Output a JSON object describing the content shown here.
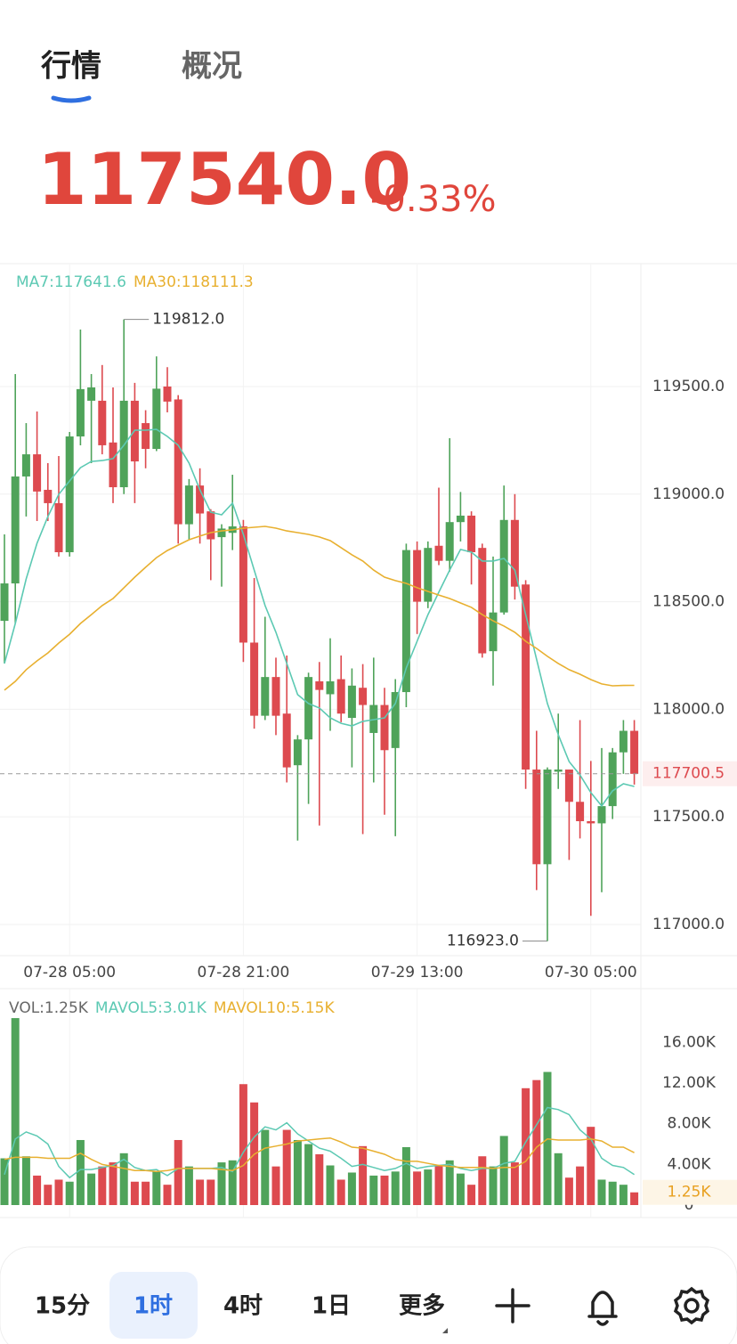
{
  "tabs": [
    "行情",
    "概况"
  ],
  "price": "117540.0",
  "change": "-0.33%",
  "chart_data": [
    {
      "type": "candlestick",
      "categories": [
        null,
        null,
        null,
        null,
        null,
        null,
        "07-28 05:00",
        null,
        null,
        null,
        null,
        null,
        null,
        null,
        null,
        null,
        null,
        null,
        null,
        null,
        null,
        null,
        "07-28 21:00",
        null,
        null,
        null,
        null,
        null,
        null,
        null,
        null,
        null,
        null,
        null,
        null,
        null,
        null,
        null,
        "07-29 13:00",
        null,
        null,
        null,
        null,
        null,
        null,
        null,
        null,
        null,
        null,
        null,
        null,
        null,
        null,
        null,
        "07-30 05:00",
        null,
        null,
        null,
        null
      ],
      "open": [
        118411,
        118585,
        119082,
        119185,
        119020,
        118958,
        118730,
        119268,
        119434,
        119434,
        119240,
        119032,
        119434,
        119330,
        119210,
        119500,
        119440,
        118860,
        119040,
        118920,
        118800,
        118820,
        118850,
        118310,
        117970,
        118150,
        117980,
        117740,
        117860,
        118130,
        118070,
        118140,
        117960,
        118100,
        117890,
        118020,
        117820,
        118080,
        118740,
        118500,
        118760,
        118690,
        118870,
        118900,
        118750,
        118270,
        118450,
        118880,
        118580,
        117720,
        117280,
        117710,
        117720,
        117570,
        117480,
        117470,
        117550,
        117800,
        117900
      ],
      "high": [
        118813,
        119558,
        119330,
        119384,
        119144,
        119177,
        119289,
        119765,
        119558,
        119600,
        119496,
        119812,
        119517,
        119390,
        119640,
        119590,
        119460,
        119070,
        119120,
        118930,
        118860,
        119090,
        118880,
        118610,
        118430,
        118240,
        118250,
        117880,
        118170,
        118220,
        118330,
        118250,
        118190,
        118210,
        118240,
        118100,
        118140,
        118770,
        118780,
        118780,
        119030,
        119260,
        119010,
        118920,
        118770,
        118710,
        119040,
        119000,
        118600,
        117900,
        117730,
        117980,
        117720,
        117950,
        117760,
        117820,
        117820,
        117950,
        117950
      ],
      "low": [
        118213,
        118399,
        118896,
        118875,
        118875,
        118710,
        118710,
        119227,
        119144,
        119185,
        118958,
        119000,
        118958,
        119120,
        119200,
        119380,
        118770,
        118790,
        118770,
        118600,
        118570,
        118740,
        118220,
        117910,
        117950,
        117880,
        117660,
        117390,
        117560,
        117460,
        117900,
        117940,
        117730,
        117420,
        117660,
        117510,
        117410,
        118010,
        118350,
        118470,
        118670,
        118640,
        118780,
        118580,
        118240,
        118110,
        118440,
        118510,
        117630,
        117160,
        116923,
        117630,
        117300,
        117400,
        117040,
        117150,
        117490,
        117700,
        117650
      ],
      "close": [
        118585,
        119082,
        119185,
        119012,
        118958,
        118730,
        119268,
        119488,
        119496,
        119227,
        119032,
        119434,
        119152,
        119210,
        119490,
        119430,
        118860,
        119040,
        118910,
        118790,
        118840,
        118850,
        118310,
        117970,
        118150,
        117970,
        117730,
        117860,
        118150,
        118090,
        118130,
        117980,
        118110,
        118020,
        118020,
        117810,
        118080,
        118740,
        118500,
        118750,
        118690,
        118870,
        118900,
        118730,
        118260,
        118450,
        118880,
        118570,
        117720,
        117280,
        117720,
        117720,
        117570,
        117480,
        117470,
        117550,
        117800,
        117900,
        117700
      ],
      "up_color": "#4fa35a",
      "down_color": "#dd4a4f",
      "series": [
        {
          "name": "MA7:117641.6",
          "color": "#5cc9b3",
          "values": [
            118213,
            118399,
            118606,
            118772,
            118896,
            118999,
            119061,
            119123,
            119152,
            119156,
            119165,
            119227,
            119297,
            119297,
            119301,
            119268,
            119227,
            119144,
            119020,
            118916,
            118904,
            118958,
            118813,
            118647,
            118482,
            118358,
            118213,
            118068,
            118027,
            118006,
            117960,
            117935,
            117923,
            117944,
            117952,
            117960,
            118027,
            118192,
            118316,
            118440,
            118544,
            118647,
            118743,
            118730,
            118689,
            118689,
            118701,
            118647,
            118440,
            118233,
            118027,
            117882,
            117757,
            117695,
            117613,
            117551,
            117621,
            117654,
            117641.6
          ]
        },
        {
          "name": "MA30:118111.3",
          "color": "#e8b030",
          "values": [
            118089,
            118130,
            118184,
            118225,
            118262,
            118308,
            118349,
            118399,
            118440,
            118482,
            118515,
            118565,
            118614,
            118660,
            118705,
            118738,
            118763,
            118788,
            118805,
            118821,
            118829,
            118834,
            118842,
            118846,
            118850,
            118842,
            118829,
            118821,
            118813,
            118801,
            118784,
            118751,
            118718,
            118689,
            118647,
            118614,
            118598,
            118585,
            118565,
            118548,
            118531,
            118515,
            118494,
            118474,
            118440,
            118411,
            118387,
            118358,
            118316,
            118283,
            118246,
            118213,
            118184,
            118163,
            118138,
            118118,
            118109,
            118111,
            118111.3
          ]
        }
      ],
      "ylim": [
        116855,
        120067
      ],
      "yticks": [
        {
          "value": 119500,
          "label": "119500.0"
        },
        {
          "value": 119000,
          "label": "119000.0"
        },
        {
          "value": 118500,
          "label": "118500.0"
        },
        {
          "value": 118000,
          "label": "118000.0"
        },
        {
          "value": 117500,
          "label": "117500.0"
        },
        {
          "value": 117000,
          "label": "117000.0"
        }
      ],
      "grid": true,
      "annotations": [
        {
          "label": "119812.0",
          "value": 119812
        },
        {
          "label": "116923.0",
          "value": 116923
        }
      ],
      "last_price": {
        "label": "117700.5",
        "value": 117700.5
      }
    },
    {
      "type": "bar",
      "name": "VOL:1.25K",
      "values": [
        4.6,
        18.4,
        4.8,
        2.9,
        2.0,
        2.5,
        2.3,
        6.4,
        3.1,
        3.8,
        4.2,
        5.1,
        2.3,
        2.3,
        3.3,
        2.0,
        6.4,
        3.8,
        2.5,
        2.5,
        4.2,
        4.4,
        11.9,
        10.1,
        7.4,
        3.8,
        7.4,
        6.4,
        6.0,
        5.0,
        3.9,
        2.5,
        3.2,
        5.8,
        2.9,
        2.9,
        3.3,
        5.7,
        3.3,
        3.5,
        3.9,
        4.4,
        3.1,
        2.0,
        4.8,
        3.8,
        6.8,
        4.2,
        11.5,
        12.3,
        13.1,
        5.1,
        2.7,
        3.8,
        7.7,
        2.5,
        2.3,
        2.0,
        1.25
      ],
      "series": [
        {
          "name": "MAVOL5:3.01K",
          "color": "#5cc9b3",
          "values": [
            3.0,
            6.5,
            7.2,
            6.8,
            6.0,
            3.8,
            2.7,
            3.5,
            3.5,
            3.7,
            3.9,
            4.5,
            3.7,
            3.4,
            3.5,
            2.9,
            3.6,
            3.6,
            3.6,
            3.6,
            3.7,
            3.3,
            5.2,
            6.7,
            7.7,
            7.4,
            8.1,
            7.0,
            6.3,
            5.6,
            5.3,
            4.6,
            3.8,
            4.0,
            3.7,
            3.4,
            3.6,
            4.1,
            3.6,
            3.8,
            3.9,
            4.0,
            3.6,
            3.4,
            3.6,
            3.6,
            4.1,
            4.3,
            6.2,
            7.9,
            9.6,
            9.4,
            8.9,
            7.4,
            6.5,
            4.6,
            3.9,
            3.7,
            3.01
          ]
        },
        {
          "name": "MAVOL10:5.15K",
          "color": "#e8b030",
          "values": [
            4.5,
            4.7,
            4.7,
            4.7,
            4.6,
            4.6,
            4.6,
            5.1,
            4.5,
            4.0,
            3.8,
            3.6,
            3.4,
            3.4,
            3.3,
            3.4,
            3.6,
            3.6,
            3.6,
            3.6,
            3.5,
            3.4,
            3.9,
            5.0,
            5.6,
            5.8,
            6.0,
            6.3,
            6.4,
            6.5,
            6.6,
            6.2,
            5.7,
            5.6,
            5.3,
            5.0,
            4.5,
            4.3,
            4.3,
            4.1,
            3.9,
            3.8,
            3.7,
            3.7,
            3.7,
            3.6,
            3.7,
            3.7,
            4.3,
            5.7,
            6.5,
            6.4,
            6.4,
            6.4,
            6.5,
            6.3,
            5.7,
            5.7,
            5.15
          ]
        }
      ],
      "ylim": [
        0,
        21.3
      ],
      "yticks": [
        {
          "value": 16,
          "label": "16.00K"
        },
        {
          "value": 12,
          "label": "12.00K"
        },
        {
          "value": 8,
          "label": "8.00K"
        },
        {
          "value": 4,
          "label": "4.00K"
        },
        0
      ],
      "last_value": {
        "label": "1.25K",
        "value": 1.25
      }
    }
  ],
  "toolbar": {
    "items": [
      "15分",
      "1时",
      "4时",
      "1日",
      "更多"
    ],
    "selected": 1
  }
}
